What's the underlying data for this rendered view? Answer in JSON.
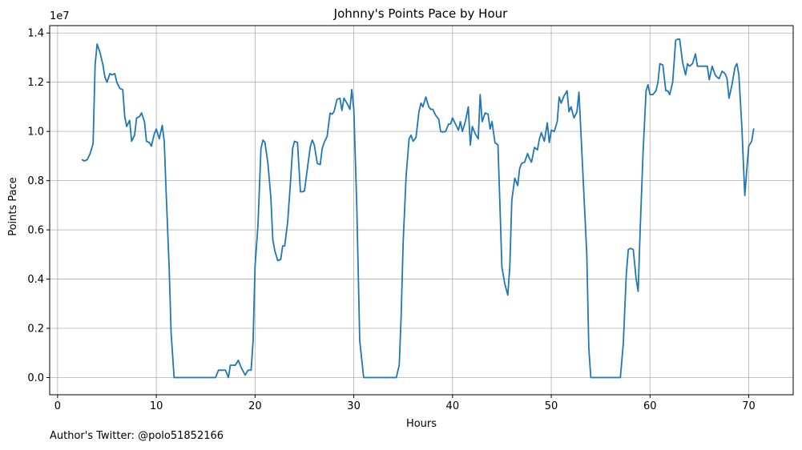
{
  "caption": "Author's Twitter: @polo51852166",
  "chart_data": {
    "type": "line",
    "title": "Johnny's Points Pace by Hour",
    "xlabel": "Hours",
    "ylabel": "Points Pace",
    "y_offset_text": "1e7",
    "xlim": [
      -0.8,
      74.5
    ],
    "ylim": [
      -0.07,
      1.43
    ],
    "x_ticks": [
      0,
      10,
      20,
      30,
      40,
      50,
      60,
      70
    ],
    "x_tick_labels": [
      "0",
      "10",
      "20",
      "30",
      "40",
      "50",
      "60",
      "70"
    ],
    "y_ticks": [
      0.0,
      0.2,
      0.4,
      0.6,
      0.8,
      1.0,
      1.2,
      1.4
    ],
    "y_tick_labels": [
      "0.0",
      "0.2",
      "0.4",
      "0.6",
      "0.8",
      "1.0",
      "1.2",
      "1.4"
    ],
    "grid": true,
    "colors": {
      "line": "#1f77b4",
      "grid": "#b0b0b0",
      "axis": "#000000"
    },
    "series": [
      {
        "name": "Points Pace",
        "x": [
          2.5,
          2.7,
          3.0,
          3.3,
          3.6,
          3.8,
          4.0,
          4.3,
          4.6,
          4.8,
          5.0,
          5.3,
          5.5,
          5.8,
          6.0,
          6.3,
          6.6,
          6.8,
          7.0,
          7.3,
          7.5,
          7.8,
          8.0,
          8.3,
          8.5,
          8.8,
          9.0,
          9.3,
          9.5,
          9.8,
          10.0,
          10.3,
          10.6,
          10.8,
          11.0,
          11.3,
          11.5,
          11.8,
          12.0,
          13.0,
          14.0,
          15.0,
          16.0,
          16.3,
          16.6,
          17.0,
          17.3,
          17.5,
          17.8,
          18.0,
          18.3,
          18.6,
          19.0,
          19.3,
          19.6,
          19.8,
          20.0,
          20.3,
          20.6,
          20.8,
          21.0,
          21.3,
          21.6,
          21.8,
          22.0,
          22.3,
          22.6,
          22.8,
          23.0,
          23.3,
          23.6,
          23.8,
          24.0,
          24.3,
          24.6,
          24.8,
          25.0,
          25.3,
          25.6,
          25.8,
          26.0,
          26.3,
          26.6,
          26.8,
          27.0,
          27.3,
          27.6,
          27.8,
          28.0,
          28.3,
          28.6,
          28.8,
          29.0,
          29.3,
          29.6,
          29.8,
          30.0,
          30.3,
          30.6,
          31.0,
          32.0,
          33.0,
          34.0,
          34.3,
          34.6,
          34.8,
          35.0,
          35.3,
          35.6,
          35.8,
          36.0,
          36.3,
          36.6,
          36.8,
          37.0,
          37.3,
          37.6,
          37.8,
          38.0,
          38.3,
          38.6,
          38.8,
          39.0,
          39.3,
          39.6,
          39.8,
          40.0,
          40.3,
          40.6,
          40.8,
          41.0,
          41.3,
          41.6,
          41.8,
          42.0,
          42.3,
          42.6,
          42.8,
          43.0,
          43.3,
          43.6,
          43.8,
          44.0,
          44.3,
          44.6,
          44.8,
          45.0,
          45.3,
          45.6,
          45.8,
          46.0,
          46.3,
          46.6,
          46.8,
          47.0,
          47.3,
          47.6,
          47.8,
          48.0,
          48.3,
          48.6,
          48.8,
          49.0,
          49.3,
          49.6,
          49.8,
          50.0,
          50.3,
          50.6,
          50.8,
          51.0,
          51.3,
          51.6,
          51.8,
          52.0,
          52.3,
          52.6,
          52.8,
          53.0,
          53.3,
          53.6,
          53.8,
          54.0,
          55.0,
          56.0,
          57.0,
          57.3,
          57.6,
          57.8,
          58.0,
          58.3,
          58.6,
          58.8,
          59.0,
          59.3,
          59.6,
          59.8,
          60.0,
          60.3,
          60.6,
          60.8,
          61.0,
          61.3,
          61.6,
          61.8,
          62.0,
          62.3,
          62.6,
          62.8,
          63.0,
          63.3,
          63.6,
          63.8,
          64.0,
          64.3,
          64.6,
          64.8,
          65.0,
          65.3,
          65.6,
          65.8,
          66.0,
          66.3,
          66.6,
          66.8,
          67.0,
          67.3,
          67.6,
          67.8,
          68.0,
          68.3,
          68.6,
          68.8,
          69.0,
          69.3,
          69.6,
          69.8,
          70.0,
          70.3,
          70.5
        ],
        "values": [
          0.885,
          0.88,
          0.885,
          0.91,
          0.95,
          1.27,
          1.355,
          1.32,
          1.27,
          1.22,
          1.2,
          1.235,
          1.23,
          1.235,
          1.2,
          1.175,
          1.17,
          1.06,
          1.02,
          1.045,
          0.96,
          0.985,
          1.055,
          1.06,
          1.075,
          1.04,
          0.96,
          0.955,
          0.94,
          0.99,
          1.01,
          0.97,
          1.025,
          0.96,
          0.75,
          0.45,
          0.18,
          0.0,
          0.0,
          0.0,
          0.0,
          0.0,
          0.0,
          0.03,
          0.03,
          0.03,
          0.0,
          0.05,
          0.05,
          0.05,
          0.07,
          0.04,
          0.01,
          0.03,
          0.03,
          0.15,
          0.45,
          0.62,
          0.93,
          0.965,
          0.955,
          0.87,
          0.73,
          0.56,
          0.515,
          0.475,
          0.48,
          0.535,
          0.535,
          0.63,
          0.8,
          0.93,
          0.96,
          0.955,
          0.755,
          0.755,
          0.758,
          0.85,
          0.94,
          0.965,
          0.945,
          0.87,
          0.865,
          0.93,
          0.955,
          0.98,
          1.075,
          1.07,
          1.08,
          1.13,
          1.135,
          1.085,
          1.135,
          1.115,
          1.09,
          1.17,
          1.09,
          0.7,
          0.15,
          0.0,
          0.0,
          0.0,
          0.0,
          0.0,
          0.05,
          0.25,
          0.55,
          0.82,
          0.97,
          0.985,
          0.96,
          0.975,
          1.08,
          1.115,
          1.1,
          1.14,
          1.1,
          1.09,
          1.09,
          1.065,
          1.05,
          1.0,
          0.998,
          1.0,
          1.03,
          1.03,
          1.055,
          1.03,
          1.005,
          1.04,
          1.0,
          1.04,
          1.1,
          0.945,
          1.02,
          0.99,
          0.97,
          1.15,
          1.04,
          1.075,
          1.07,
          1.01,
          1.04,
          0.955,
          0.945,
          0.7,
          0.45,
          0.38,
          0.335,
          0.45,
          0.72,
          0.81,
          0.78,
          0.85,
          0.87,
          0.875,
          0.91,
          0.89,
          0.875,
          0.935,
          0.925,
          0.97,
          0.995,
          0.96,
          1.035,
          0.955,
          1.005,
          1.0,
          1.04,
          1.14,
          1.115,
          1.145,
          1.165,
          1.08,
          1.1,
          1.055,
          1.08,
          1.16,
          1.0,
          0.75,
          0.5,
          0.12,
          0.0,
          0.0,
          0.0,
          0.0,
          0.14,
          0.42,
          0.52,
          0.525,
          0.52,
          0.4,
          0.35,
          0.6,
          0.92,
          1.165,
          1.19,
          1.15,
          1.15,
          1.165,
          1.2,
          1.275,
          1.27,
          1.165,
          1.165,
          1.15,
          1.2,
          1.37,
          1.375,
          1.375,
          1.28,
          1.23,
          1.275,
          1.265,
          1.275,
          1.315,
          1.265,
          1.265,
          1.265,
          1.265,
          1.265,
          1.21,
          1.265,
          1.23,
          1.22,
          1.215,
          1.245,
          1.235,
          1.215,
          1.135,
          1.19,
          1.26,
          1.275,
          1.23,
          1.02,
          0.74,
          0.845,
          0.94,
          0.96,
          1.01
        ]
      }
    ]
  }
}
